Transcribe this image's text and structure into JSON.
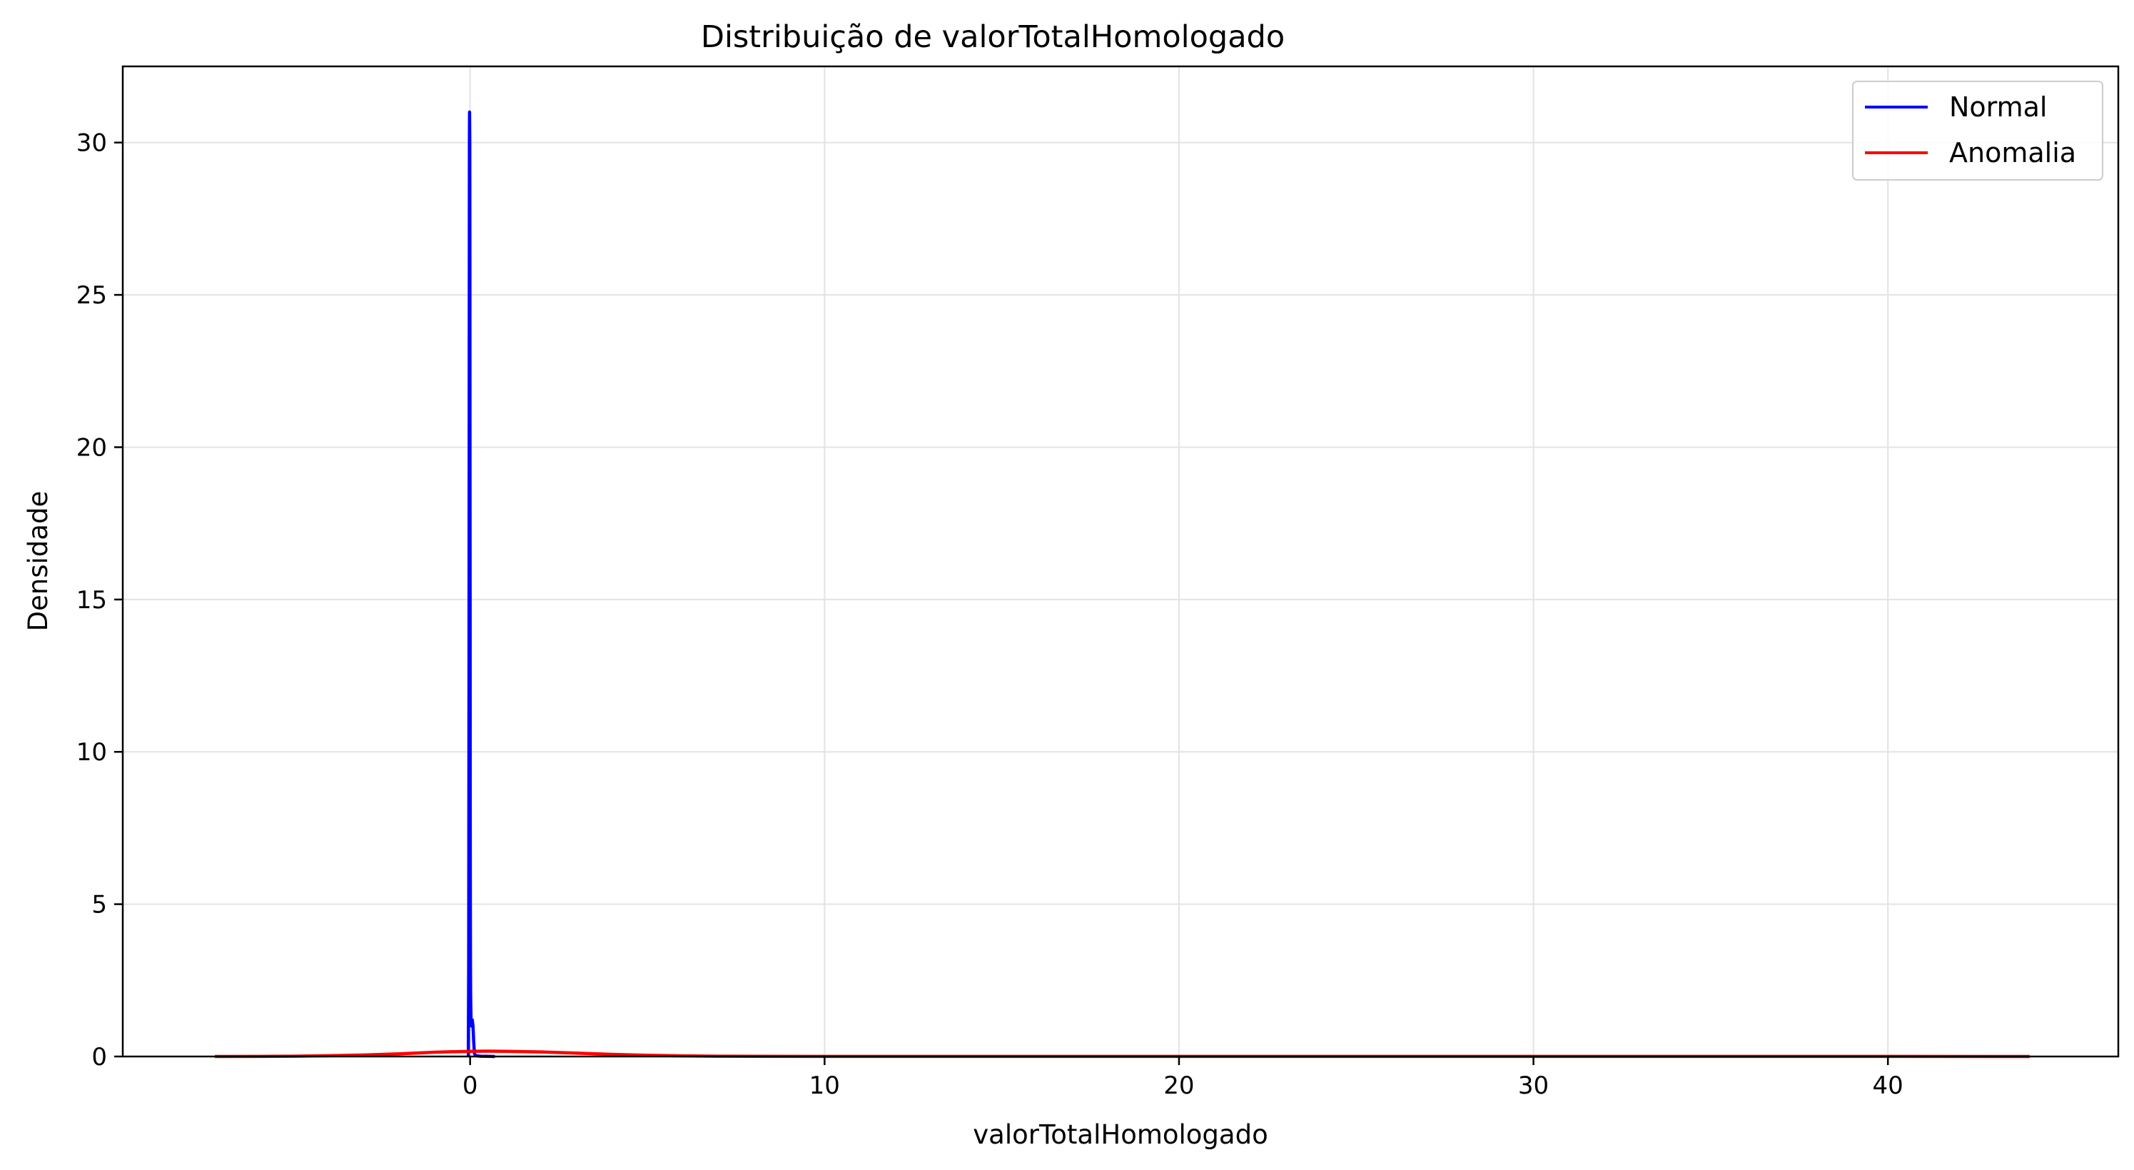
{
  "chart_data": {
    "type": "line",
    "title": "Distribuição de valorTotalHomologado",
    "xlabel": "valorTotalHomologado",
    "ylabel": "Densidade",
    "xlim": [
      -9.8,
      46.5
    ],
    "ylim": [
      0,
      32.5
    ],
    "xticks": [
      0,
      10,
      20,
      30,
      40
    ],
    "yticks": [
      0,
      5,
      10,
      15,
      20,
      25,
      30
    ],
    "grid": true,
    "legend_position": "top-right",
    "series": [
      {
        "name": "Normal",
        "color": "#0000ff",
        "x": [
          -0.05,
          -0.04,
          -0.03,
          -0.025,
          -0.02,
          -0.015,
          -0.01,
          -0.006,
          -0.003,
          0.0,
          0.003,
          0.006,
          0.01,
          0.015,
          0.02,
          0.025,
          0.03,
          0.04,
          0.05,
          0.06,
          0.08,
          0.1,
          0.12,
          0.15,
          0.2,
          0.3,
          0.5,
          0.7
        ],
        "y": [
          0.0,
          3.0,
          14.0,
          24.0,
          30.0,
          31.0,
          30.0,
          26.0,
          20.0,
          14.0,
          9.0,
          5.0,
          3.0,
          2.0,
          1.6,
          1.3,
          1.1,
          1.0,
          1.1,
          1.2,
          1.0,
          0.5,
          0.1,
          0.03,
          0.02,
          0.01,
          0.005,
          0.0
        ]
      },
      {
        "name": "Anomalia",
        "color": "#ff0000",
        "x": [
          -7.2,
          -6.0,
          -5.0,
          -4.0,
          -3.0,
          -2.0,
          -1.0,
          0.0,
          0.5,
          1.0,
          2.0,
          3.0,
          4.0,
          5.0,
          6.0,
          7.0,
          8.0,
          10.0,
          15.0,
          20.0,
          25.0,
          30.0,
          35.0,
          40.0,
          44.0
        ],
        "y": [
          0.0,
          0.003,
          0.01,
          0.025,
          0.05,
          0.09,
          0.14,
          0.17,
          0.175,
          0.17,
          0.15,
          0.11,
          0.07,
          0.04,
          0.02,
          0.01,
          0.005,
          0.003,
          0.002,
          0.002,
          0.002,
          0.002,
          0.002,
          0.002,
          0.001
        ]
      }
    ]
  }
}
